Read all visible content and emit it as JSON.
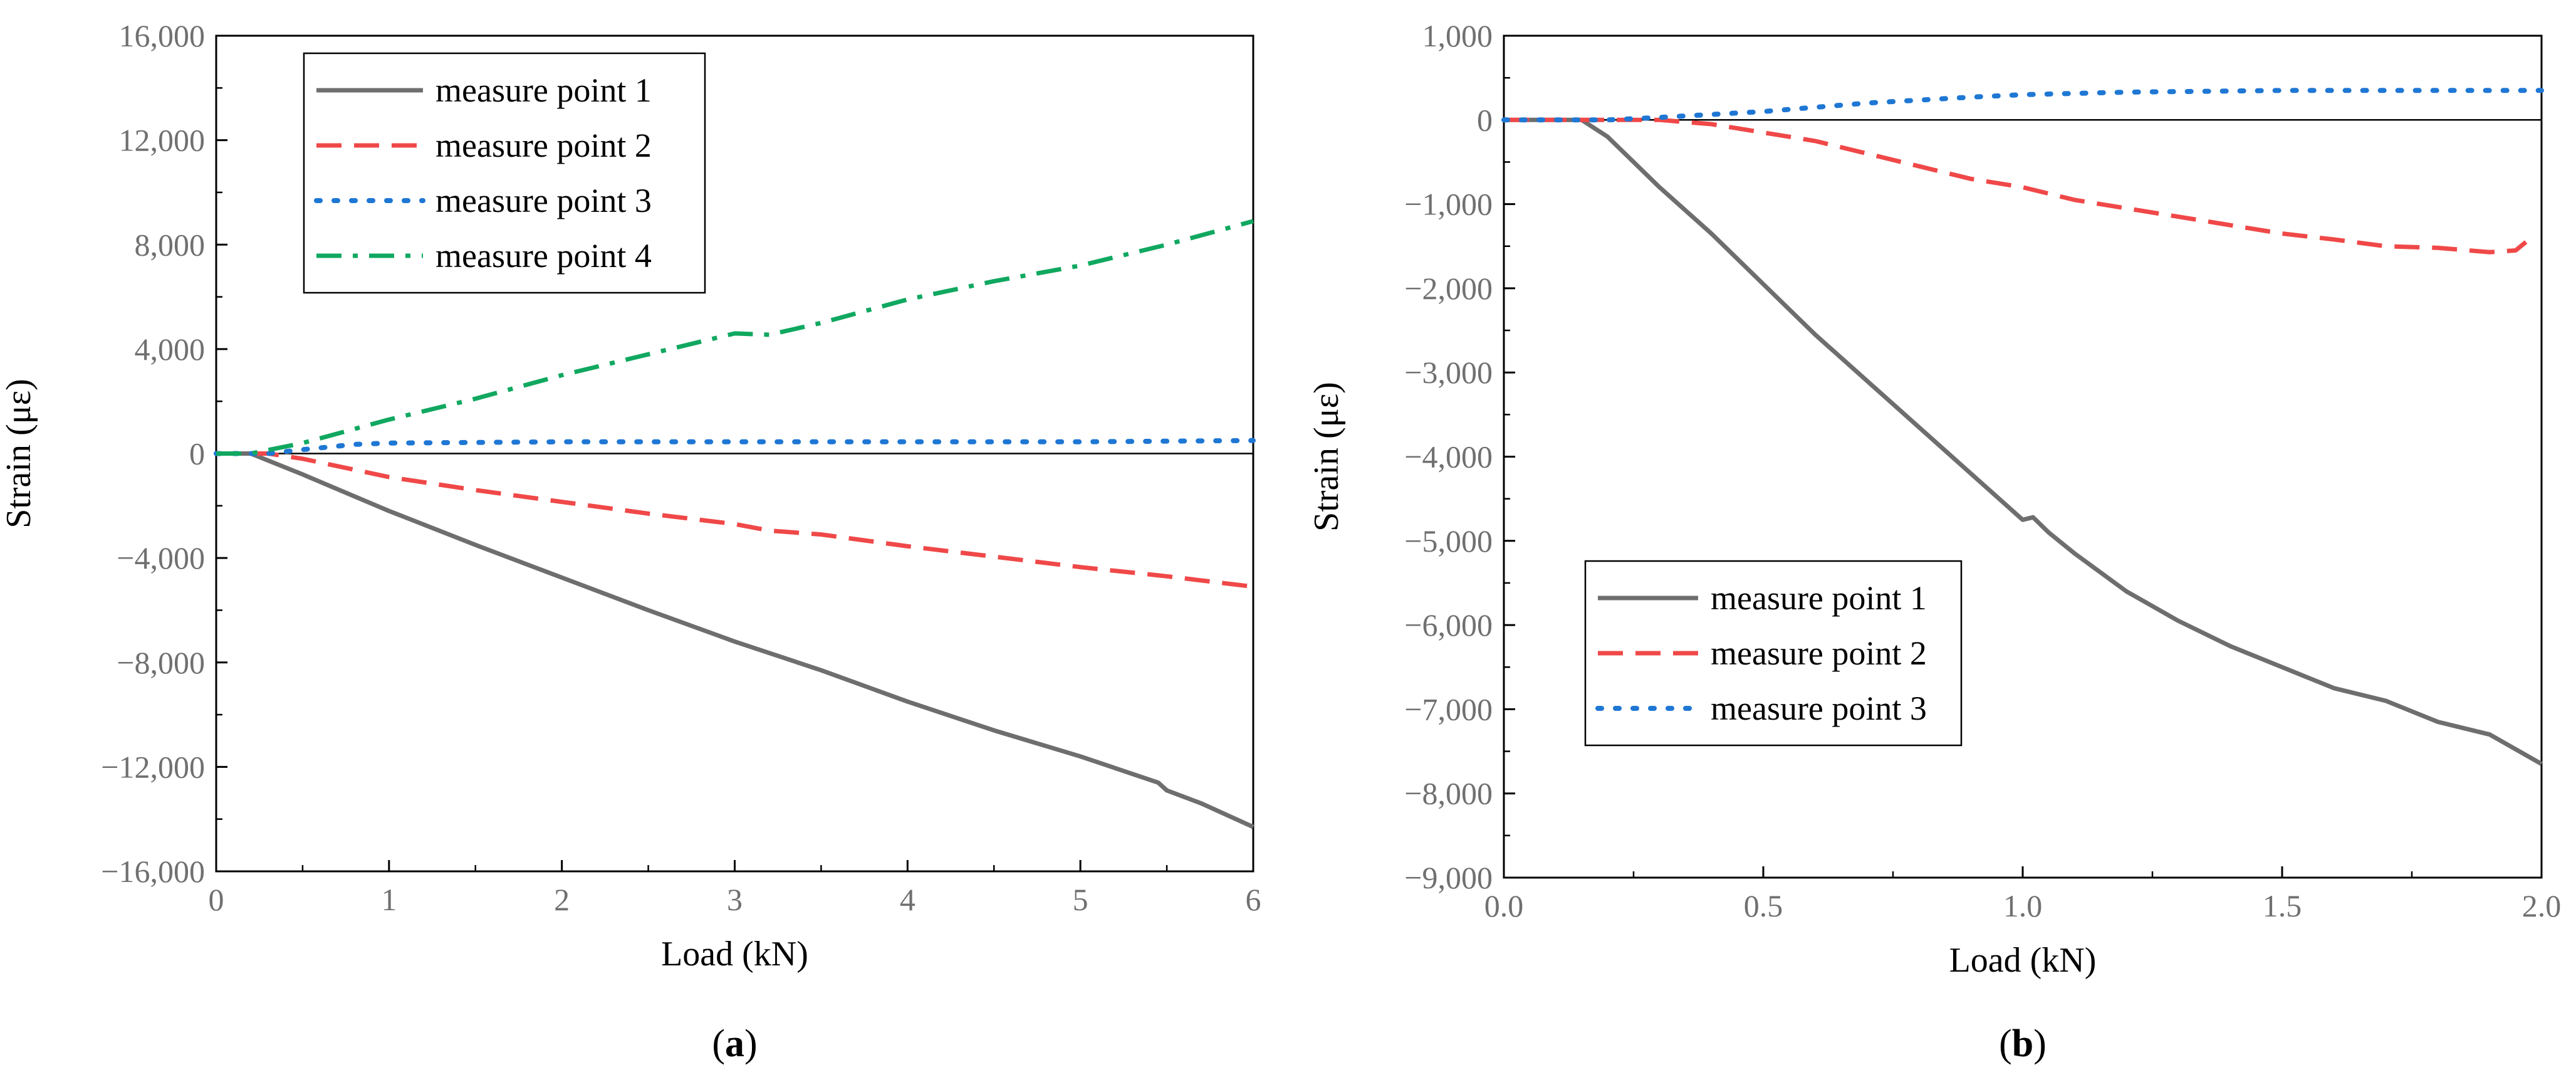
{
  "chart_data": [
    {
      "panel": "a",
      "panel_label": "a",
      "type": "line",
      "xlabel": "Load (kN)",
      "ylabel": "Strain (με)",
      "xlim": [
        0,
        6
      ],
      "ylim": [
        -16000,
        16000
      ],
      "x_ticks": [
        0,
        1,
        2,
        3,
        4,
        5,
        6
      ],
      "x_tick_labels": [
        "0",
        "1",
        "2",
        "3",
        "4",
        "5",
        "6"
      ],
      "y_ticks": [
        -16000,
        -12000,
        -8000,
        -4000,
        0,
        4000,
        8000,
        12000,
        16000
      ],
      "y_tick_labels": [
        "−16,000",
        "−12,000",
        "−8,000",
        "−4,000",
        "0",
        "4,000",
        "8,000",
        "12,000",
        "16,000"
      ],
      "zero_line": true,
      "legend_position": "top-left",
      "series": [
        {
          "name": "measure point 1",
          "color": "#6e6e6e",
          "style": "solid",
          "points": [
            [
              0,
              0
            ],
            [
              0.2,
              0
            ],
            [
              0.5,
              -800
            ],
            [
              1,
              -2200
            ],
            [
              1.5,
              -3500
            ],
            [
              2,
              -4750
            ],
            [
              2.5,
              -6000
            ],
            [
              3,
              -7200
            ],
            [
              3.5,
              -8300
            ],
            [
              4,
              -9500
            ],
            [
              4.5,
              -10600
            ],
            [
              5,
              -11600
            ],
            [
              5.45,
              -12600
            ],
            [
              5.5,
              -12900
            ],
            [
              5.7,
              -13400
            ],
            [
              6,
              -14300
            ]
          ]
        },
        {
          "name": "measure point 2",
          "color": "#f04848",
          "style": "dashed",
          "points": [
            [
              0,
              0
            ],
            [
              0.3,
              0
            ],
            [
              0.5,
              -200
            ],
            [
              1,
              -900
            ],
            [
              1.5,
              -1400
            ],
            [
              2,
              -1850
            ],
            [
              2.5,
              -2300
            ],
            [
              3,
              -2700
            ],
            [
              3.2,
              -2950
            ],
            [
              3.5,
              -3100
            ],
            [
              4,
              -3550
            ],
            [
              4.5,
              -3950
            ],
            [
              5,
              -4350
            ],
            [
              5.5,
              -4700
            ],
            [
              6,
              -5100
            ]
          ]
        },
        {
          "name": "measure point 3",
          "color": "#1f77d4",
          "style": "dotted",
          "points": [
            [
              0,
              0
            ],
            [
              0.3,
              0
            ],
            [
              0.5,
              150
            ],
            [
              0.8,
              350
            ],
            [
              1,
              400
            ],
            [
              2,
              450
            ],
            [
              3,
              450
            ],
            [
              4,
              450
            ],
            [
              5,
              450
            ],
            [
              6,
              500
            ]
          ]
        },
        {
          "name": "measure point 4",
          "color": "#10a860",
          "style": "dashdot",
          "points": [
            [
              0,
              0
            ],
            [
              0.2,
              0
            ],
            [
              0.5,
              400
            ],
            [
              1,
              1300
            ],
            [
              1.5,
              2100
            ],
            [
              2,
              3000
            ],
            [
              2.5,
              3800
            ],
            [
              3,
              4600
            ],
            [
              3.2,
              4550
            ],
            [
              3.5,
              5000
            ],
            [
              4,
              5900
            ],
            [
              4.5,
              6600
            ],
            [
              5,
              7200
            ],
            [
              5.5,
              8000
            ],
            [
              6,
              8900
            ]
          ]
        }
      ]
    },
    {
      "panel": "b",
      "panel_label": "b",
      "type": "line",
      "xlabel": "Load (kN)",
      "ylabel": "Strain (με)",
      "xlim": [
        0,
        2
      ],
      "ylim": [
        -9000,
        1000
      ],
      "x_ticks": [
        0,
        0.5,
        1.0,
        1.5,
        2.0
      ],
      "x_tick_labels": [
        "0.0",
        "0.5",
        "1.0",
        "1.5",
        "2.0"
      ],
      "y_ticks": [
        -9000,
        -8000,
        -7000,
        -6000,
        -5000,
        -4000,
        -3000,
        -2000,
        -1000,
        0,
        1000
      ],
      "y_tick_labels": [
        "−9,000",
        "−8,000",
        "−7,000",
        "−6,000",
        "−5,000",
        "−4,000",
        "−3,000",
        "−2,000",
        "−1,000",
        "0",
        "1,000"
      ],
      "zero_line": true,
      "legend_position": "bottom-left",
      "series": [
        {
          "name": "measure point 1",
          "color": "#6e6e6e",
          "style": "solid",
          "points": [
            [
              0,
              0
            ],
            [
              0.15,
              0
            ],
            [
              0.2,
              -200
            ],
            [
              0.3,
              -800
            ],
            [
              0.4,
              -1350
            ],
            [
              0.5,
              -1950
            ],
            [
              0.6,
              -2550
            ],
            [
              0.7,
              -3100
            ],
            [
              0.8,
              -3650
            ],
            [
              0.9,
              -4200
            ],
            [
              1.0,
              -4750
            ],
            [
              1.02,
              -4720
            ],
            [
              1.05,
              -4900
            ],
            [
              1.1,
              -5150
            ],
            [
              1.2,
              -5600
            ],
            [
              1.3,
              -5950
            ],
            [
              1.4,
              -6250
            ],
            [
              1.5,
              -6500
            ],
            [
              1.6,
              -6750
            ],
            [
              1.7,
              -6900
            ],
            [
              1.8,
              -7150
            ],
            [
              1.9,
              -7300
            ],
            [
              2.0,
              -7650
            ]
          ]
        },
        {
          "name": "measure point 2",
          "color": "#f04848",
          "style": "dashed",
          "points": [
            [
              0,
              0
            ],
            [
              0.3,
              0
            ],
            [
              0.4,
              -50
            ],
            [
              0.5,
              -150
            ],
            [
              0.6,
              -250
            ],
            [
              0.7,
              -400
            ],
            [
              0.8,
              -550
            ],
            [
              0.9,
              -700
            ],
            [
              1.0,
              -800
            ],
            [
              1.1,
              -950
            ],
            [
              1.2,
              -1050
            ],
            [
              1.3,
              -1150
            ],
            [
              1.4,
              -1250
            ],
            [
              1.5,
              -1350
            ],
            [
              1.6,
              -1420
            ],
            [
              1.7,
              -1500
            ],
            [
              1.8,
              -1520
            ],
            [
              1.9,
              -1570
            ],
            [
              1.95,
              -1550
            ],
            [
              1.97,
              -1450
            ]
          ]
        },
        {
          "name": "measure point 3",
          "color": "#1f77d4",
          "style": "dotted",
          "points": [
            [
              0,
              0
            ],
            [
              0.2,
              0
            ],
            [
              0.3,
              30
            ],
            [
              0.5,
              100
            ],
            [
              0.7,
              200
            ],
            [
              0.9,
              270
            ],
            [
              1.0,
              300
            ],
            [
              1.2,
              330
            ],
            [
              1.5,
              350
            ],
            [
              1.8,
              350
            ],
            [
              2.0,
              350
            ]
          ]
        }
      ]
    }
  ]
}
